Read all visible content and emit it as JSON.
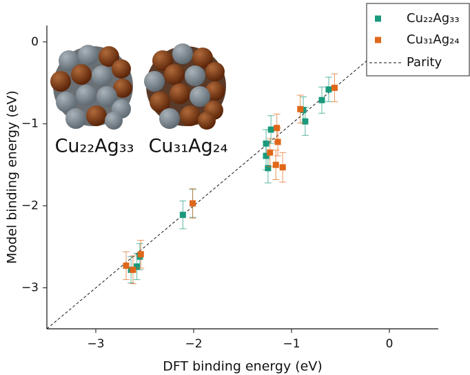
{
  "chart_data": {
    "type": "scatter",
    "x_label": "DFT binding energy (eV)",
    "y_label": "Model binding energy (eV)",
    "xlim": [
      -3.5,
      0.5
    ],
    "ylim": [
      -3.5,
      0.2
    ],
    "xticks": [
      {
        "value": -3,
        "label": "−3"
      },
      {
        "value": -2,
        "label": "−2"
      },
      {
        "value": -1,
        "label": "−1"
      },
      0
    ],
    "yticks": [
      {
        "value": -3,
        "label": "−3"
      },
      {
        "value": -2,
        "label": "−2"
      },
      {
        "value": -1,
        "label": "−1"
      },
      0
    ],
    "annotations": [
      "Cu₂₂Ag₃₃",
      "Cu₃₁Ag₂₄"
    ],
    "parity_label": "Parity",
    "legend": "upper right",
    "series": [
      {
        "name": "Cu₂₂Ag₃₃",
        "color": "#1a9a7c",
        "x": [
          -0.62,
          -0.69,
          -0.86,
          -0.88,
          -1.21,
          -1.26,
          -1.26,
          -1.24,
          -2.11,
          -2.01,
          -2.64,
          -2.58,
          -2.55
        ],
        "values": [
          -0.58,
          -0.71,
          -0.97,
          -0.83,
          -1.07,
          -1.24,
          -1.39,
          -1.54,
          -2.11,
          -1.97,
          -2.78,
          -2.74,
          -2.62
        ],
        "errors": [
          0.15,
          0.16,
          0.17,
          0.16,
          0.17,
          0.17,
          0.17,
          0.18,
          0.17,
          0.17,
          0.16,
          0.16,
          0.16
        ]
      },
      {
        "name": "Cu₃₁Ag₂₄",
        "color": "#e0671a",
        "x": [
          -0.56,
          -0.91,
          -1.15,
          -1.14,
          -1.22,
          -1.16,
          -1.09,
          -2.01,
          -2.69,
          -2.62,
          -2.54
        ],
        "values": [
          -0.56,
          -0.82,
          -1.05,
          -1.22,
          -1.35,
          -1.5,
          -1.53,
          -1.97,
          -2.73,
          -2.78,
          -2.59
        ],
        "errors": [
          0.17,
          0.17,
          0.17,
          0.17,
          0.17,
          0.18,
          0.18,
          0.18,
          0.17,
          0.17,
          0.17
        ]
      }
    ]
  }
}
